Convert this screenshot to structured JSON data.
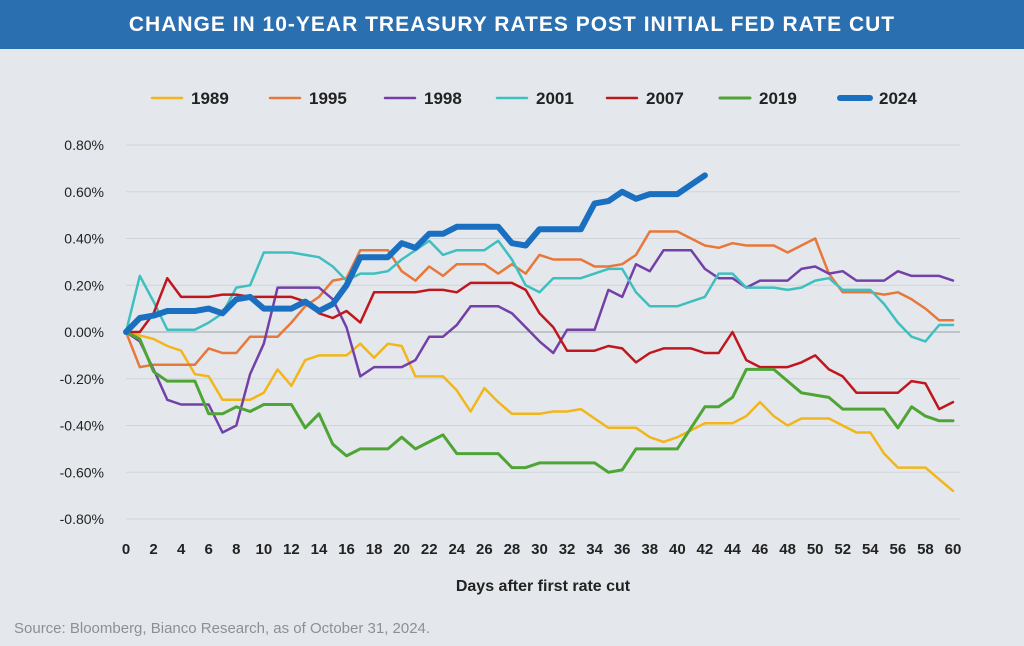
{
  "title": "CHANGE IN 10-YEAR TREASURY RATES POST INITIAL FED RATE CUT",
  "source": "Source: Bloomberg, Bianco Research, as of October 31, 2024.",
  "chart_data": {
    "type": "line",
    "xlabel": "Days after first rate cut",
    "ylabel": "",
    "xlim": [
      0,
      60
    ],
    "ylim": [
      -0.8,
      0.8
    ],
    "xticks": [
      0,
      2,
      4,
      6,
      8,
      10,
      12,
      14,
      16,
      18,
      20,
      22,
      24,
      26,
      28,
      30,
      32,
      34,
      36,
      38,
      40,
      42,
      44,
      46,
      48,
      50,
      52,
      54,
      56,
      58,
      60
    ],
    "yticks": [
      "0.80%",
      "0.60%",
      "0.40%",
      "0.20%",
      "0.00%",
      "-0.20%",
      "-0.40%",
      "-0.60%",
      "-0.80%"
    ],
    "ytick_values": [
      0.8,
      0.6,
      0.4,
      0.2,
      0.0,
      -0.2,
      -0.4,
      -0.6,
      -0.8
    ],
    "grid": "horizontal gridlines",
    "legend_position": "top",
    "series": [
      {
        "name": "1989",
        "color": "#f2b61b",
        "width": 2.5,
        "x": [
          0,
          2,
          3,
          4,
          5,
          6,
          7,
          8,
          9,
          10,
          11,
          12,
          13,
          14,
          15,
          16,
          17,
          18,
          19,
          20,
          21,
          22,
          23,
          24,
          25,
          26,
          27,
          28,
          29,
          30,
          31,
          32,
          33,
          34,
          35,
          36,
          37,
          38,
          39,
          40,
          41,
          42,
          43,
          44,
          45,
          46,
          47,
          48,
          49,
          50,
          51,
          52,
          53,
          54,
          55,
          56,
          57,
          58,
          59,
          60
        ],
        "y": [
          0,
          -0.03,
          -0.06,
          -0.08,
          -0.18,
          -0.19,
          -0.29,
          -0.29,
          -0.29,
          -0.26,
          -0.16,
          -0.23,
          -0.12,
          -0.1,
          -0.1,
          -0.1,
          -0.05,
          -0.11,
          -0.05,
          -0.06,
          -0.19,
          -0.19,
          -0.19,
          -0.25,
          -0.34,
          -0.24,
          -0.3,
          -0.35,
          -0.35,
          -0.35,
          -0.34,
          -0.34,
          -0.33,
          -0.37,
          -0.41,
          -0.41,
          -0.41,
          -0.45,
          -0.47,
          -0.45,
          -0.42,
          -0.39,
          -0.39,
          -0.39,
          -0.36,
          -0.3,
          -0.36,
          -0.4,
          -0.37,
          -0.37,
          -0.37,
          -0.4,
          -0.43,
          -0.43,
          -0.52,
          -0.58,
          -0.58,
          -0.58,
          -0.63,
          -0.68
        ]
      },
      {
        "name": "1995",
        "color": "#e8773a",
        "width": 2.5,
        "x": [
          0,
          1,
          2,
          3,
          4,
          5,
          6,
          7,
          8,
          9,
          10,
          11,
          12,
          13,
          14,
          15,
          16,
          17,
          18,
          19,
          20,
          21,
          22,
          23,
          24,
          25,
          26,
          27,
          28,
          29,
          30,
          31,
          32,
          33,
          34,
          35,
          36,
          37,
          38,
          39,
          40,
          41,
          42,
          43,
          44,
          45,
          46,
          47,
          48,
          49,
          50,
          51,
          52,
          53,
          54,
          55,
          56,
          57,
          58,
          59,
          60
        ],
        "y": [
          0,
          -0.15,
          -0.14,
          -0.14,
          -0.14,
          -0.14,
          -0.07,
          -0.09,
          -0.09,
          -0.02,
          -0.02,
          -0.02,
          0.04,
          0.11,
          0.15,
          0.22,
          0.23,
          0.35,
          0.35,
          0.35,
          0.26,
          0.22,
          0.28,
          0.24,
          0.29,
          0.29,
          0.29,
          0.25,
          0.29,
          0.25,
          0.33,
          0.31,
          0.31,
          0.31,
          0.28,
          0.28,
          0.29,
          0.33,
          0.43,
          0.43,
          0.43,
          0.4,
          0.37,
          0.36,
          0.38,
          0.37,
          0.37,
          0.37,
          0.34,
          0.37,
          0.4,
          0.25,
          0.17,
          0.17,
          0.17,
          0.16,
          0.17,
          0.14,
          0.1,
          0.05,
          0.05
        ]
      },
      {
        "name": "1998",
        "color": "#7440a8",
        "width": 2.5,
        "x": [
          0,
          1,
          2,
          3,
          4,
          5,
          6,
          7,
          8,
          9,
          10,
          11,
          12,
          13,
          14,
          15,
          16,
          17,
          18,
          19,
          20,
          21,
          22,
          23,
          24,
          25,
          26,
          27,
          28,
          29,
          30,
          31,
          32,
          33,
          34,
          35,
          36,
          37,
          38,
          39,
          40,
          41,
          42,
          43,
          44,
          45,
          46,
          47,
          48,
          49,
          50,
          51,
          52,
          53,
          54,
          55,
          56,
          57,
          58,
          59,
          60
        ],
        "y": [
          0,
          -0.04,
          -0.16,
          -0.29,
          -0.31,
          -0.31,
          -0.31,
          -0.43,
          -0.4,
          -0.18,
          -0.05,
          0.19,
          0.19,
          0.19,
          0.19,
          0.14,
          0.02,
          -0.19,
          -0.15,
          -0.15,
          -0.15,
          -0.12,
          -0.02,
          -0.02,
          0.03,
          0.11,
          0.11,
          0.11,
          0.08,
          0.02,
          -0.04,
          -0.09,
          0.01,
          0.01,
          0.01,
          0.18,
          0.15,
          0.29,
          0.26,
          0.35,
          0.35,
          0.35,
          0.27,
          0.23,
          0.23,
          0.19,
          0.22,
          0.22,
          0.22,
          0.27,
          0.28,
          0.25,
          0.26,
          0.22,
          0.22,
          0.22,
          0.26,
          0.24,
          0.24,
          0.24,
          0.22
        ]
      },
      {
        "name": "2001",
        "color": "#3fbfbf",
        "width": 2.5,
        "x": [
          0,
          1,
          2,
          3,
          4,
          5,
          6,
          7,
          8,
          9,
          10,
          11,
          12,
          13,
          14,
          15,
          16,
          17,
          18,
          19,
          20,
          21,
          22,
          23,
          24,
          25,
          26,
          27,
          28,
          29,
          30,
          31,
          32,
          33,
          34,
          35,
          36,
          37,
          38,
          39,
          40,
          41,
          42,
          43,
          44,
          45,
          46,
          47,
          48,
          49,
          50,
          51,
          52,
          53,
          54,
          55,
          56,
          57,
          58,
          59,
          60
        ],
        "y": [
          0,
          0.24,
          0.13,
          0.01,
          0.01,
          0.01,
          0.04,
          0.08,
          0.19,
          0.2,
          0.34,
          0.34,
          0.34,
          0.33,
          0.32,
          0.28,
          0.22,
          0.25,
          0.25,
          0.26,
          0.31,
          0.35,
          0.39,
          0.33,
          0.35,
          0.35,
          0.35,
          0.39,
          0.31,
          0.2,
          0.17,
          0.23,
          0.23,
          0.23,
          0.25,
          0.27,
          0.27,
          0.17,
          0.11,
          0.11,
          0.11,
          0.13,
          0.15,
          0.25,
          0.25,
          0.19,
          0.19,
          0.19,
          0.18,
          0.19,
          0.22,
          0.23,
          0.18,
          0.18,
          0.18,
          0.12,
          0.04,
          -0.02,
          -0.04,
          0.03,
          0.03
        ]
      },
      {
        "name": "2007",
        "color": "#c0171e",
        "width": 2.5,
        "x": [
          0,
          1,
          2,
          3,
          4,
          5,
          6,
          7,
          8,
          9,
          10,
          11,
          12,
          13,
          14,
          15,
          16,
          17,
          18,
          19,
          20,
          21,
          22,
          23,
          24,
          25,
          26,
          27,
          28,
          29,
          30,
          31,
          32,
          33,
          34,
          35,
          36,
          37,
          38,
          39,
          40,
          41,
          42,
          43,
          44,
          45,
          46,
          47,
          48,
          49,
          50,
          51,
          52,
          53,
          54,
          55,
          56,
          57,
          58,
          59,
          60
        ],
        "y": [
          0,
          0,
          0.08,
          0.23,
          0.15,
          0.15,
          0.15,
          0.16,
          0.16,
          0.15,
          0.15,
          0.15,
          0.15,
          0.13,
          0.08,
          0.06,
          0.09,
          0.04,
          0.17,
          0.17,
          0.17,
          0.17,
          0.18,
          0.18,
          0.17,
          0.21,
          0.21,
          0.21,
          0.21,
          0.18,
          0.08,
          0.02,
          -0.08,
          -0.08,
          -0.08,
          -0.06,
          -0.07,
          -0.13,
          -0.09,
          -0.07,
          -0.07,
          -0.07,
          -0.09,
          -0.09,
          0,
          -0.12,
          -0.15,
          -0.15,
          -0.15,
          -0.13,
          -0.1,
          -0.16,
          -0.19,
          -0.26,
          -0.26,
          -0.26,
          -0.26,
          -0.21,
          -0.22,
          -0.33,
          -0.3
        ]
      },
      {
        "name": "2019",
        "color": "#4ea535",
        "width": 3,
        "x": [
          0,
          1,
          2,
          3,
          4,
          5,
          6,
          7,
          8,
          9,
          10,
          11,
          12,
          13,
          14,
          15,
          16,
          17,
          18,
          19,
          20,
          21,
          22,
          23,
          24,
          25,
          26,
          27,
          28,
          29,
          30,
          31,
          32,
          33,
          34,
          35,
          36,
          37,
          38,
          39,
          40,
          41,
          42,
          43,
          44,
          45,
          46,
          47,
          48,
          49,
          50,
          51,
          52,
          53,
          54,
          55,
          56,
          57,
          58,
          59,
          60
        ],
        "y": [
          0,
          -0.03,
          -0.17,
          -0.21,
          -0.21,
          -0.21,
          -0.35,
          -0.35,
          -0.32,
          -0.34,
          -0.31,
          -0.31,
          -0.31,
          -0.41,
          -0.35,
          -0.48,
          -0.53,
          -0.5,
          -0.5,
          -0.5,
          -0.45,
          -0.5,
          -0.47,
          -0.44,
          -0.52,
          -0.52,
          -0.52,
          -0.52,
          -0.58,
          -0.58,
          -0.56,
          -0.56,
          -0.56,
          -0.56,
          -0.56,
          -0.6,
          -0.59,
          -0.5,
          -0.5,
          -0.5,
          -0.5,
          -0.41,
          -0.32,
          -0.32,
          -0.28,
          -0.16,
          -0.16,
          -0.16,
          -0.21,
          -0.26,
          -0.27,
          -0.28,
          -0.33,
          -0.33,
          -0.33,
          -0.33,
          -0.41,
          -0.32,
          -0.36,
          -0.38,
          -0.38
        ]
      },
      {
        "name": "2024",
        "color": "#1a6fc0",
        "width": 6,
        "x": [
          0,
          1,
          2,
          3,
          4,
          5,
          6,
          7,
          8,
          9,
          10,
          11,
          12,
          13,
          14,
          15,
          16,
          17,
          18,
          19,
          20,
          21,
          22,
          23,
          24,
          25,
          26,
          27,
          28,
          29,
          30,
          31,
          32,
          33,
          34,
          35,
          36,
          37,
          38,
          39,
          40,
          41,
          42
        ],
        "y": [
          0,
          0.06,
          0.07,
          0.09,
          0.09,
          0.09,
          0.1,
          0.08,
          0.14,
          0.15,
          0.1,
          0.1,
          0.1,
          0.13,
          0.09,
          0.12,
          0.2,
          0.32,
          0.32,
          0.32,
          0.38,
          0.36,
          0.42,
          0.42,
          0.45,
          0.45,
          0.45,
          0.45,
          0.38,
          0.37,
          0.44,
          0.44,
          0.44,
          0.44,
          0.55,
          0.56,
          0.6,
          0.57,
          0.59,
          0.59,
          0.59,
          0.63,
          0.67
        ]
      }
    ]
  }
}
